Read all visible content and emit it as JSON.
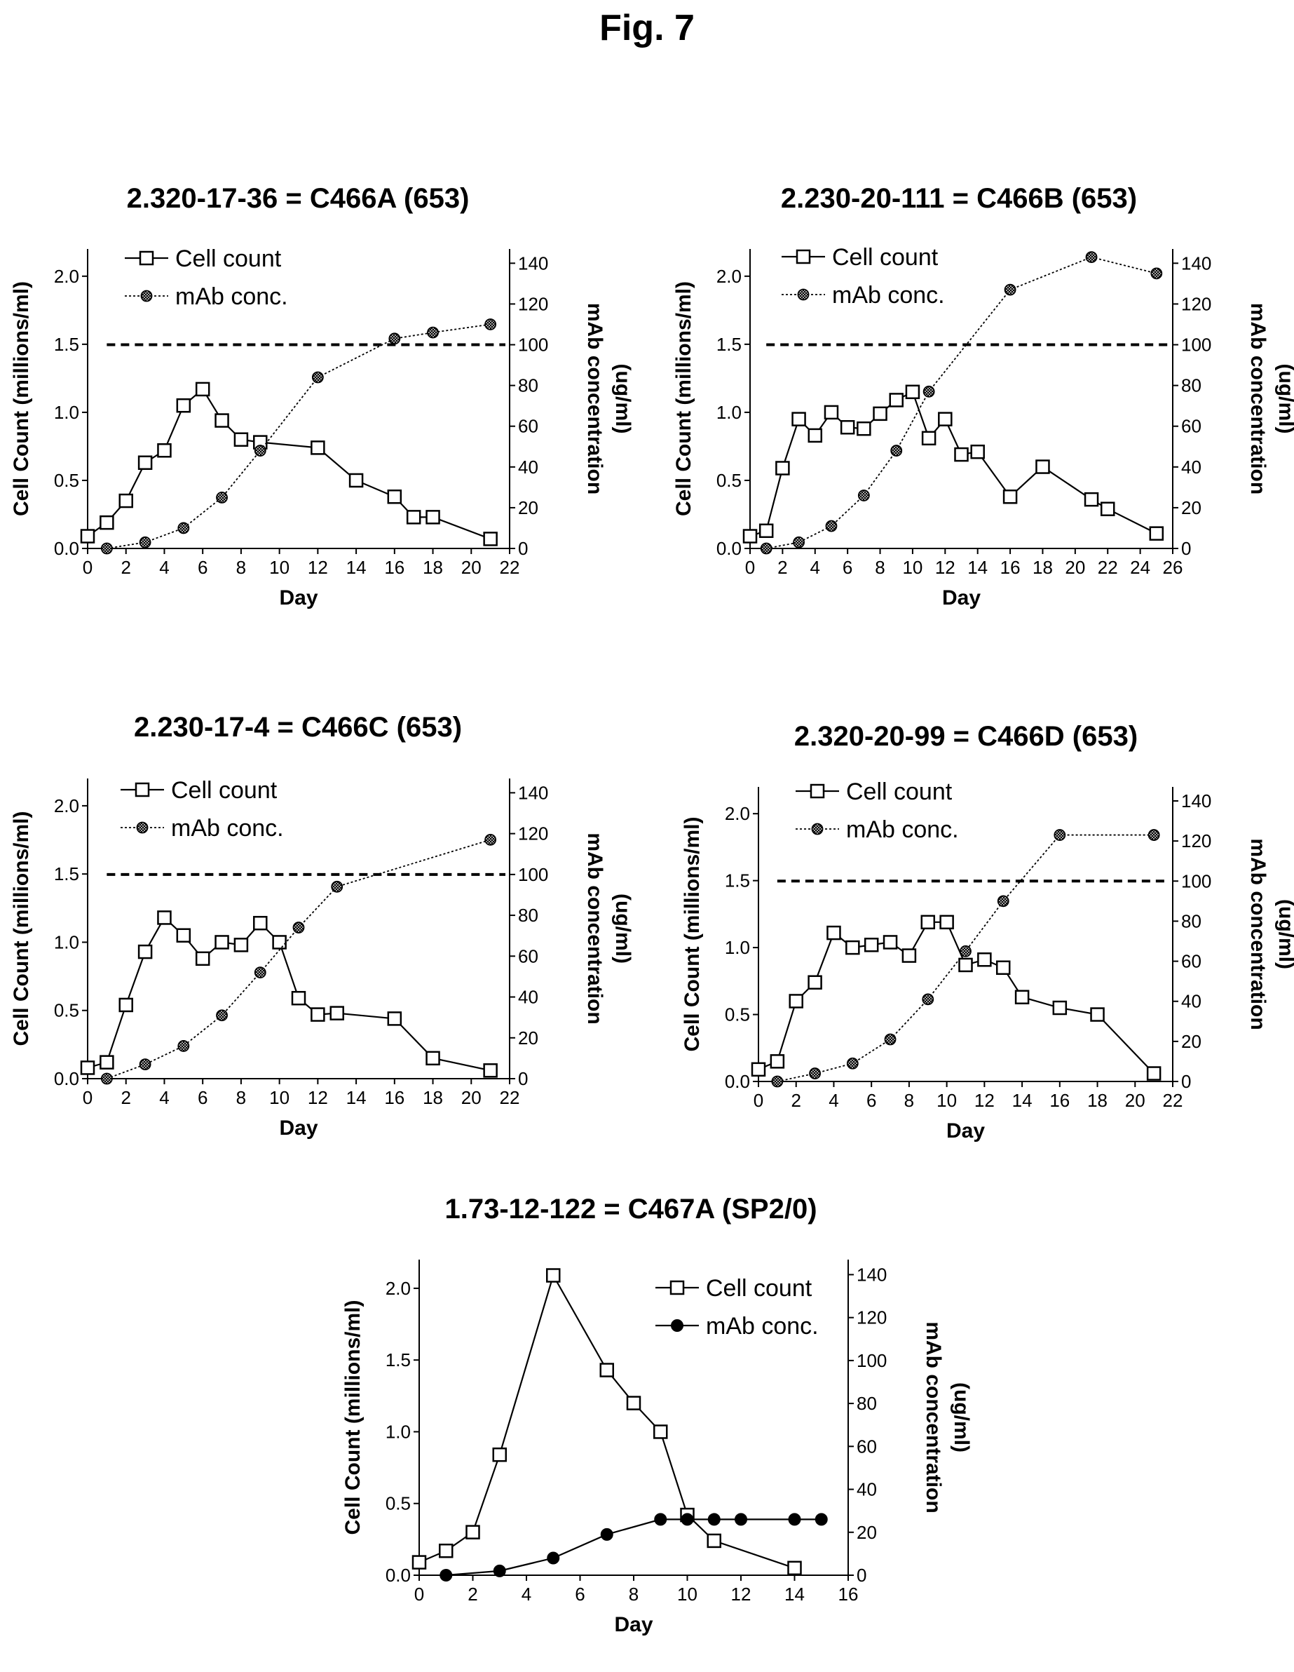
{
  "figure_title": "Fig. 7",
  "chart_data": [
    {
      "type": "line",
      "title": "2.320-17-36 = C466A  (653)",
      "xlabel": "Day",
      "ylabel": "Cell Count (millions/ml)",
      "y2label": [
        "mAb concentration",
        "(ug/ml)"
      ],
      "xlim": [
        0,
        22
      ],
      "xticks": [
        0,
        2,
        4,
        6,
        8,
        10,
        12,
        14,
        16,
        18,
        20,
        22
      ],
      "ylim": [
        0,
        2.2
      ],
      "yticks": [
        "0.0",
        "0.5",
        "1.0",
        "1.5",
        "2.0"
      ],
      "y2lim": [
        0,
        147
      ],
      "y2ticks": [
        0,
        20,
        40,
        60,
        80,
        100,
        120,
        140
      ],
      "threshold_y2": 100,
      "legend_position": "top-left",
      "series": [
        {
          "name": "Cell count",
          "axis": "left",
          "marker": "open-square",
          "line": "solid",
          "x": [
            0,
            1,
            2,
            3,
            4,
            5,
            6,
            7,
            8,
            9,
            12,
            14,
            16,
            17,
            18,
            21
          ],
          "y": [
            0.09,
            0.19,
            0.35,
            0.63,
            0.72,
            1.05,
            1.17,
            0.94,
            0.8,
            0.78,
            0.74,
            0.5,
            0.38,
            0.23,
            0.23,
            0.07
          ]
        },
        {
          "name": "mAb conc.",
          "axis": "right",
          "marker": "hatched-circle",
          "line": "dotted",
          "x": [
            1,
            3,
            5,
            7,
            9,
            12,
            16,
            18,
            21
          ],
          "y": [
            0,
            3,
            10,
            25,
            48,
            84,
            103,
            106,
            110
          ]
        }
      ]
    },
    {
      "type": "line",
      "title": "2.230-20-111 = C466B  (653)",
      "xlabel": "Day",
      "ylabel": "Cell Count (millions/ml)",
      "y2label": [
        "mAb concentration",
        "(ug/ml)"
      ],
      "xlim": [
        0,
        26
      ],
      "xticks": [
        0,
        2,
        4,
        6,
        8,
        10,
        12,
        14,
        16,
        18,
        20,
        22,
        24,
        26
      ],
      "ylim": [
        0,
        2.2
      ],
      "yticks": [
        "0.0",
        "0.5",
        "1.0",
        "1.5",
        "2.0"
      ],
      "y2lim": [
        0,
        147
      ],
      "y2ticks": [
        0,
        20,
        40,
        60,
        80,
        100,
        120,
        140
      ],
      "threshold_y2": 100,
      "legend_position": "top-left",
      "series": [
        {
          "name": "Cell count",
          "axis": "left",
          "marker": "open-square",
          "line": "solid",
          "x": [
            0,
            1,
            2,
            3,
            4,
            5,
            6,
            7,
            8,
            9,
            10,
            11,
            12,
            13,
            14,
            16,
            18,
            21,
            22,
            25
          ],
          "y": [
            0.09,
            0.13,
            0.59,
            0.95,
            0.83,
            1.0,
            0.89,
            0.88,
            0.99,
            1.09,
            1.15,
            0.81,
            0.95,
            0.69,
            0.71,
            0.38,
            0.6,
            0.36,
            0.29,
            0.11
          ]
        },
        {
          "name": "mAb conc.",
          "axis": "right",
          "marker": "hatched-circle",
          "line": "dotted",
          "x": [
            1,
            3,
            5,
            7,
            9,
            11,
            16,
            21,
            25
          ],
          "y": [
            0,
            3,
            11,
            26,
            48,
            77,
            127,
            143,
            135
          ]
        }
      ]
    },
    {
      "type": "line",
      "title": "2.230-17-4 = C466C  (653)",
      "xlabel": "Day",
      "ylabel": "Cell Count (millions/ml)",
      "y2label": [
        "mAb concentration",
        "(ug/ml)"
      ],
      "xlim": [
        0,
        22
      ],
      "xticks": [
        0,
        2,
        4,
        6,
        8,
        10,
        12,
        14,
        16,
        18,
        20,
        22
      ],
      "ylim": [
        0,
        2.2
      ],
      "yticks": [
        "0.0",
        "0.5",
        "1.0",
        "1.5",
        "2.0"
      ],
      "y2lim": [
        0,
        147
      ],
      "y2ticks": [
        0,
        20,
        40,
        60,
        80,
        100,
        120,
        140
      ],
      "threshold_y2": 100,
      "legend_position": "top-left",
      "series": [
        {
          "name": "Cell count",
          "axis": "left",
          "marker": "open-square",
          "line": "solid",
          "x": [
            0,
            1,
            2,
            3,
            4,
            5,
            6,
            7,
            8,
            9,
            10,
            11,
            12,
            13,
            16,
            18,
            21
          ],
          "y": [
            0.08,
            0.12,
            0.54,
            0.93,
            1.18,
            1.05,
            0.88,
            1.0,
            0.98,
            1.14,
            1.0,
            0.59,
            0.47,
            0.48,
            0.44,
            0.15,
            0.06
          ]
        },
        {
          "name": "mAb conc.",
          "axis": "right",
          "marker": "hatched-circle",
          "line": "dotted",
          "x": [
            1,
            3,
            5,
            7,
            9,
            11,
            13,
            21
          ],
          "y": [
            0,
            7,
            16,
            31,
            52,
            74,
            94,
            117
          ]
        }
      ]
    },
    {
      "type": "line",
      "title": "2.320-20-99 = C466D  (653)",
      "xlabel": "Day",
      "ylabel": "Cell Count (millions/ml)",
      "y2label": [
        "mAb concentration",
        "(ug/ml)"
      ],
      "xlim": [
        0,
        22
      ],
      "xticks": [
        0,
        2,
        4,
        6,
        8,
        10,
        12,
        14,
        16,
        18,
        20,
        22
      ],
      "ylim": [
        0,
        2.2
      ],
      "yticks": [
        "0.0",
        "0.5",
        "1.0",
        "1.5",
        "2.0"
      ],
      "y2lim": [
        0,
        147
      ],
      "y2ticks": [
        0,
        20,
        40,
        60,
        80,
        100,
        120,
        140
      ],
      "threshold_y2": 100,
      "legend_position": "top-left",
      "series": [
        {
          "name": "Cell count",
          "axis": "left",
          "marker": "open-square",
          "line": "solid",
          "x": [
            0,
            1,
            2,
            3,
            4,
            5,
            6,
            7,
            8,
            9,
            10,
            11,
            12,
            13,
            14,
            16,
            18,
            21
          ],
          "y": [
            0.09,
            0.15,
            0.6,
            0.74,
            1.11,
            1.0,
            1.02,
            1.04,
            0.94,
            1.19,
            1.19,
            0.87,
            0.91,
            0.85,
            0.63,
            0.55,
            0.5,
            0.06
          ]
        },
        {
          "name": "mAb conc.",
          "axis": "right",
          "marker": "hatched-circle",
          "line": "dotted",
          "x": [
            1,
            3,
            5,
            7,
            9,
            11,
            13,
            16,
            21
          ],
          "y": [
            0,
            4,
            9,
            21,
            41,
            65,
            90,
            123,
            123
          ]
        }
      ]
    },
    {
      "type": "line",
      "title": "1.73-12-122 = C467A (SP2/0)",
      "xlabel": "Day",
      "ylabel": "Cell Count (millions/ml)",
      "y2label": [
        "mAb concentration",
        "(ug/ml)"
      ],
      "xlim": [
        0,
        16
      ],
      "xticks": [
        0,
        2,
        4,
        6,
        8,
        10,
        12,
        14,
        16
      ],
      "ylim": [
        0,
        2.2
      ],
      "yticks": [
        "0.0",
        "0.5",
        "1.0",
        "1.5",
        "2.0"
      ],
      "y2lim": [
        0,
        147
      ],
      "y2ticks": [
        0,
        20,
        40,
        60,
        80,
        100,
        120,
        140
      ],
      "threshold_y2": null,
      "legend_position": "top-right",
      "series": [
        {
          "name": "Cell count",
          "axis": "left",
          "marker": "open-square",
          "line": "solid",
          "x": [
            0,
            1,
            2,
            3,
            5,
            7,
            8,
            9,
            10,
            11,
            14
          ],
          "y": [
            0.09,
            0.17,
            0.3,
            0.84,
            2.09,
            1.43,
            1.2,
            1.0,
            0.42,
            0.24,
            0.05
          ]
        },
        {
          "name": "mAb conc.",
          "axis": "right",
          "marker": "filled-circle",
          "line": "solid",
          "x": [
            1,
            3,
            5,
            7,
            9,
            10,
            11,
            12,
            14,
            15
          ],
          "y": [
            0,
            2,
            8,
            19,
            26,
            26,
            26,
            26,
            26,
            26
          ]
        }
      ]
    }
  ]
}
